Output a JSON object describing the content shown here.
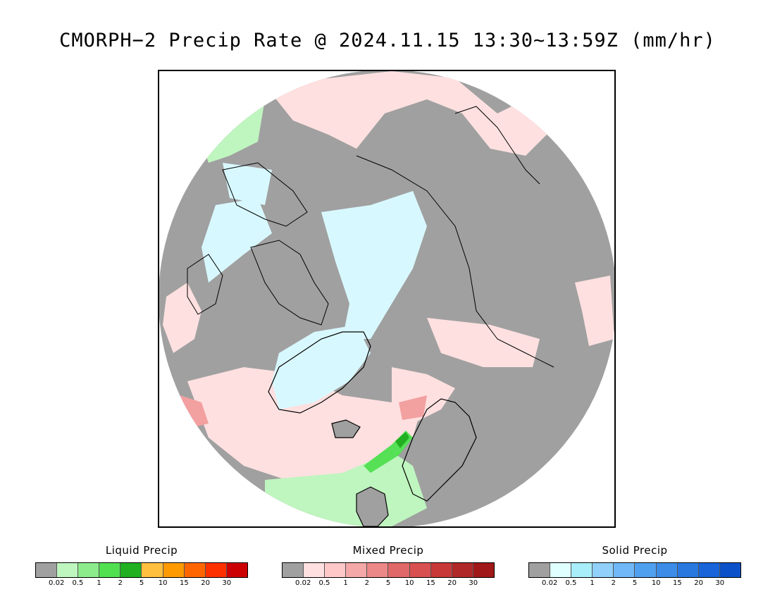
{
  "title": "CMORPH−2 Precip Rate @ 2024.11.15 13:30~13:59Z (mm/hr)",
  "map": {
    "projection": "polar-stereographic-north",
    "colors": {
      "no_precip": "#a0a0a0",
      "ocean": "#ffffff",
      "mixed_light": "#ffe0e0",
      "solid_light": "#d8f8ff",
      "liquid_light": "#bff5bf",
      "liquid_mid": "#55e055",
      "liquid_heavy": "#22b022",
      "mixed_mid": "#f3a0a0",
      "coastline": "#000000"
    }
  },
  "legends": [
    {
      "title": "Liquid Precip",
      "colors": [
        "#a0a0a0",
        "#bff5bf",
        "#8cec8c",
        "#50e050",
        "#20b020",
        "#ffc040",
        "#ff9a00",
        "#ff6600",
        "#ff3000",
        "#cc0000"
      ],
      "ticks": [
        "0.02",
        "0.5",
        "1",
        "2",
        "5",
        "10",
        "15",
        "20",
        "30"
      ]
    },
    {
      "title": "Mixed Precip",
      "colors": [
        "#a0a0a0",
        "#ffe0e0",
        "#ffc8c8",
        "#f4a8a8",
        "#ec8888",
        "#e06868",
        "#d85050",
        "#c83838",
        "#b02828",
        "#a01818"
      ],
      "ticks": [
        "0.02",
        "0.5",
        "1",
        "2",
        "5",
        "10",
        "15",
        "20",
        "30"
      ]
    },
    {
      "title": "Solid Precip",
      "colors": [
        "#a0a0a0",
        "#e0ffff",
        "#a8eefa",
        "#90d0fa",
        "#70b8f8",
        "#50a0f0",
        "#3c8ce8",
        "#2878e0",
        "#1864d8",
        "#0a50c8"
      ],
      "ticks": [
        "0.02",
        "0.5",
        "1",
        "2",
        "5",
        "10",
        "15",
        "20",
        "30"
      ]
    }
  ]
}
